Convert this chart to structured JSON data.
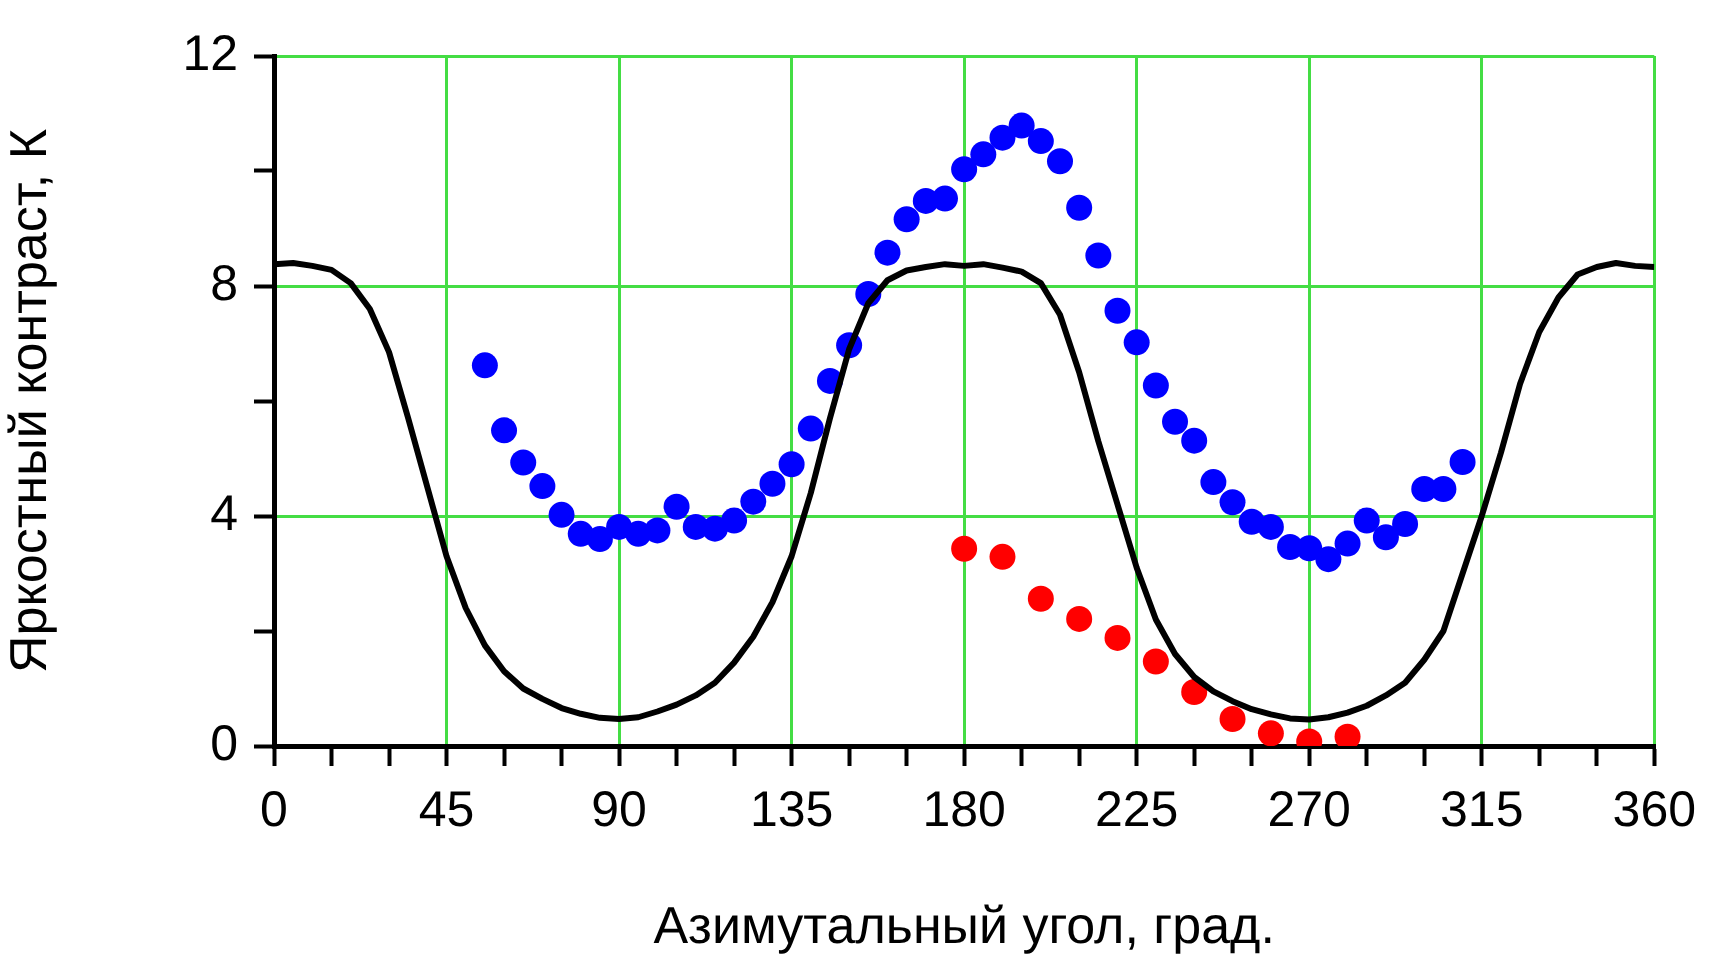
{
  "chart_data": {
    "type": "scatter",
    "xlabel": "Азимутальный угол, град.",
    "ylabel": "Яркостный контраст, К",
    "xlim": [
      0,
      360
    ],
    "xticks": [
      0,
      {
        "value": 15,
        "label": null
      },
      {
        "value": 30,
        "label": null
      },
      45,
      {
        "value": 60,
        "label": null
      },
      {
        "value": 75,
        "label": null
      },
      90,
      {
        "value": 105,
        "label": null
      },
      {
        "value": 120,
        "label": null
      },
      135,
      {
        "value": 150,
        "label": null
      },
      {
        "value": 165,
        "label": null
      },
      180,
      {
        "value": 195,
        "label": null
      },
      {
        "value": 210,
        "label": null
      },
      225,
      {
        "value": 240,
        "label": null
      },
      {
        "value": 255,
        "label": null
      },
      270,
      {
        "value": 285,
        "label": null
      },
      {
        "value": 300,
        "label": null
      },
      315,
      {
        "value": 330,
        "label": null
      },
      {
        "value": 345,
        "label": null
      },
      360
    ],
    "ylim": [
      0,
      12
    ],
    "yticks": [
      0,
      {
        "value": 2,
        "label": null
      },
      4,
      {
        "value": 6,
        "label": null
      },
      8,
      {
        "value": 10,
        "label": null
      },
      12
    ],
    "grid": true,
    "series": [
      {
        "type": "line",
        "color": "#000000",
        "marker": "none",
        "line_style": "solid",
        "x": [
          0,
          5,
          10,
          15,
          20,
          25,
          30,
          35,
          40,
          45,
          50,
          55,
          60,
          65,
          70,
          75,
          80,
          85,
          90,
          95,
          100,
          105,
          110,
          115,
          120,
          125,
          130,
          135,
          140,
          145,
          150,
          155,
          160,
          165,
          170,
          175,
          180,
          185,
          190,
          195,
          200,
          205,
          210,
          215,
          220,
          225,
          230,
          235,
          240,
          245,
          250,
          255,
          260,
          265,
          270,
          275,
          280,
          285,
          290,
          295,
          300,
          305,
          310,
          315,
          320,
          325,
          330,
          335,
          340,
          345,
          350,
          355,
          360
        ],
        "values": [
          8.38,
          8.4,
          8.35,
          8.28,
          8.05,
          7.6,
          6.85,
          5.7,
          4.5,
          3.3,
          2.4,
          1.75,
          1.3,
          1.0,
          0.82,
          0.66,
          0.56,
          0.49,
          0.47,
          0.5,
          0.6,
          0.72,
          0.88,
          1.1,
          1.45,
          1.9,
          2.5,
          3.3,
          4.4,
          5.7,
          6.9,
          7.7,
          8.1,
          8.27,
          8.33,
          8.38,
          8.35,
          8.38,
          8.32,
          8.25,
          8.05,
          7.5,
          6.5,
          5.3,
          4.2,
          3.1,
          2.2,
          1.6,
          1.2,
          0.95,
          0.78,
          0.64,
          0.55,
          0.48,
          0.46,
          0.5,
          0.58,
          0.7,
          0.88,
          1.1,
          1.5,
          2.0,
          3.0,
          4.0,
          5.1,
          6.3,
          7.2,
          7.8,
          8.2,
          8.33,
          8.4,
          8.35,
          8.33
        ]
      },
      {
        "type": "scatter",
        "color": "#0000ff",
        "marker": "circle",
        "x": [
          55,
          60,
          65,
          70,
          75,
          80,
          85,
          90,
          95,
          100,
          105,
          110,
          115,
          120,
          125,
          130,
          135,
          140,
          145,
          150,
          155,
          160,
          165,
          170,
          175,
          180,
          185,
          190,
          195,
          200,
          205,
          210,
          215,
          220,
          225,
          230,
          235,
          240,
          245,
          250,
          255,
          260,
          265,
          270,
          275,
          280,
          285,
          290,
          295,
          300,
          305,
          310
        ],
        "values": [
          6.62,
          5.49,
          4.93,
          4.52,
          4.02,
          3.69,
          3.6,
          3.81,
          3.69,
          3.75,
          4.16,
          3.81,
          3.78,
          3.92,
          4.25,
          4.56,
          4.9,
          5.52,
          6.35,
          6.97,
          7.86,
          8.58,
          9.16,
          9.48,
          9.52,
          10.03,
          10.29,
          10.58,
          10.79,
          10.52,
          10.17,
          9.36,
          8.53,
          7.57,
          7.02,
          6.27,
          5.64,
          5.31,
          4.59,
          4.24,
          3.9,
          3.81,
          3.46,
          3.44,
          3.25,
          3.52,
          3.92,
          3.63,
          3.86,
          4.47,
          4.47,
          4.94
        ]
      },
      {
        "type": "scatter",
        "color": "#ff0000",
        "marker": "circle",
        "x": [
          180,
          190,
          200,
          210,
          220,
          230,
          240,
          250,
          260,
          270,
          280
        ],
        "values": [
          3.43,
          3.29,
          2.56,
          2.21,
          1.88,
          1.47,
          0.94,
          0.47,
          0.22,
          0.08,
          0.16
        ]
      }
    ]
  }
}
